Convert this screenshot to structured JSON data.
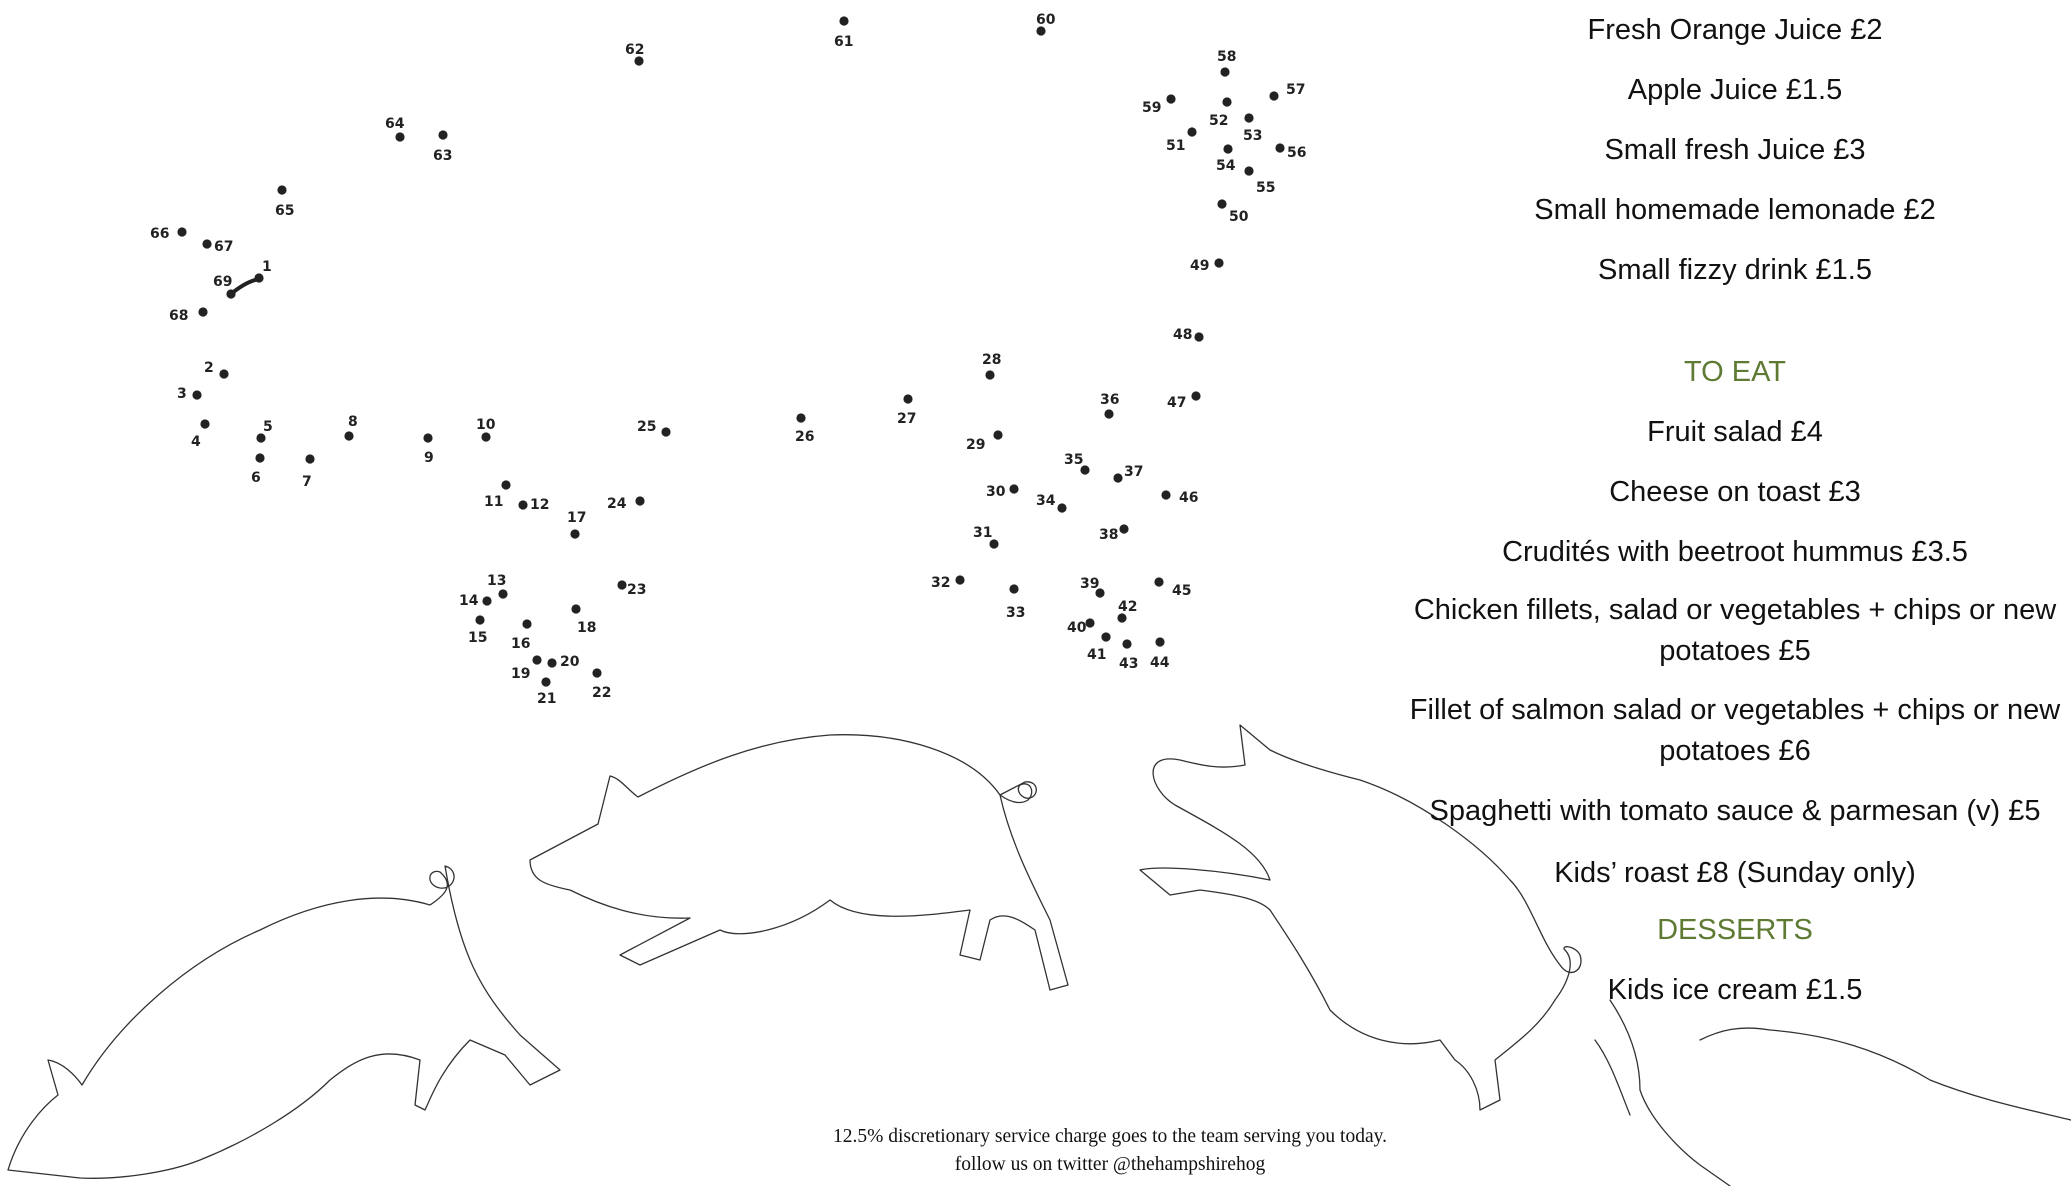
{
  "dot_puzzle": {
    "labels": [
      "1",
      "2",
      "3",
      "4",
      "5",
      "6",
      "7",
      "8",
      "9",
      "10",
      "11",
      "12",
      "13",
      "14",
      "15",
      "16",
      "17",
      "18",
      "19",
      "20",
      "21",
      "22",
      "23",
      "24",
      "25",
      "26",
      "27",
      "28",
      "29",
      "30",
      "31",
      "32",
      "33",
      "34",
      "35",
      "36",
      "37",
      "38",
      "39",
      "40",
      "41",
      "42",
      "43",
      "44",
      "45",
      "46",
      "47",
      "48",
      "49",
      "50",
      "51",
      "52",
      "53",
      "54",
      "55",
      "56",
      "57",
      "58",
      "59",
      "60",
      "61",
      "62",
      "63",
      "64",
      "65",
      "66",
      "67",
      "68",
      "69"
    ]
  },
  "drinks": [
    {
      "text": "Fresh Orange Juice £2"
    },
    {
      "text": "Apple Juice £1.5"
    },
    {
      "text": "Small fresh Juice £3"
    },
    {
      "text": "Small homemade lemonade £2"
    },
    {
      "text": "Small fizzy drink £1.5"
    }
  ],
  "to_eat": {
    "heading": "TO EAT",
    "items": [
      {
        "text": "Fruit salad £4"
      },
      {
        "text": "Cheese on toast £3"
      },
      {
        "text": "Crudités with beetroot hummus £3.5"
      },
      {
        "text": "Chicken fillets, salad or vegetables + chips or new potatoes £5"
      },
      {
        "text": "Fillet of salmon salad or vegetables + chips or new potatoes £6"
      },
      {
        "text": "Spaghetti with tomato sauce & parmesan (v) £5"
      },
      {
        "text": "Kids’ roast £8 (Sunday only)"
      }
    ]
  },
  "desserts": {
    "heading": "DESSERTS",
    "items": [
      {
        "text": "Kids ice cream £1.5"
      }
    ]
  },
  "footer": {
    "line1": "12.5% discretionary service charge goes to the team serving you today.",
    "line2": "follow us on twitter @thehampshirehog"
  },
  "colors": {
    "section_heading": "#5e7a33",
    "text": "#111111",
    "outline": "#333333"
  }
}
